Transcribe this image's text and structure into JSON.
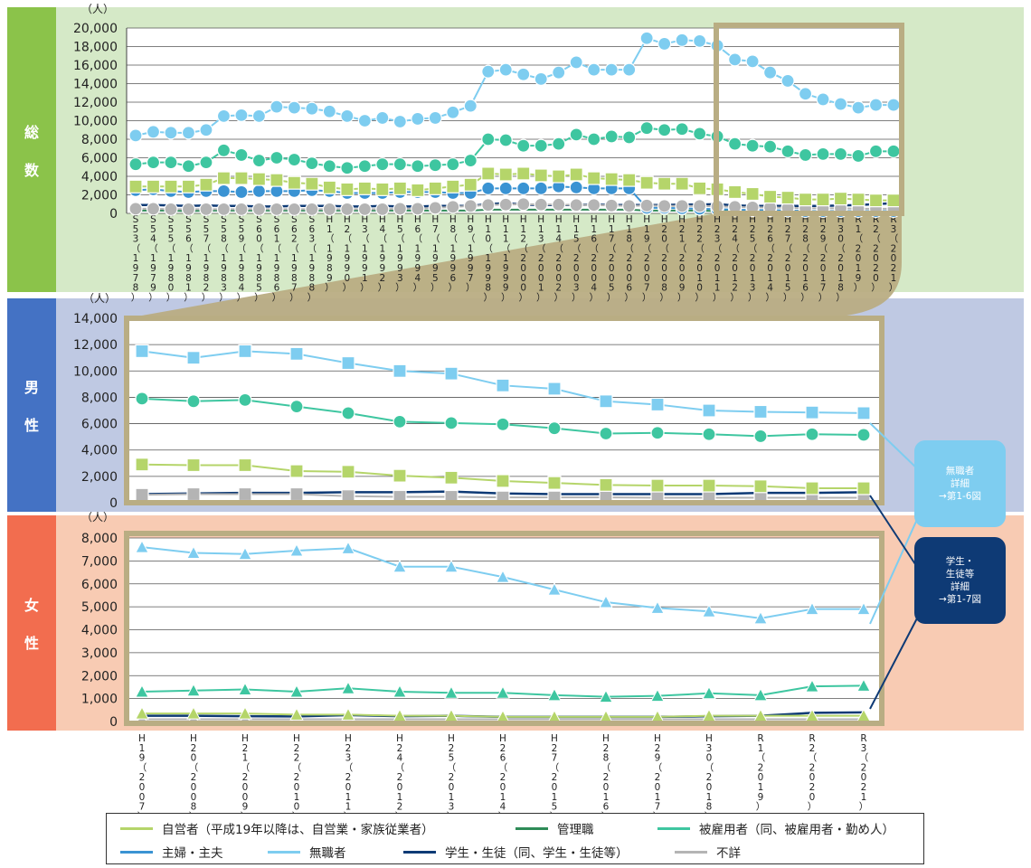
{
  "panels": {
    "total": {
      "label_chars": [
        "総",
        "数"
      ],
      "unit": "（人）"
    },
    "male": {
      "label_chars": [
        "男",
        "性"
      ],
      "unit": "（人）"
    },
    "female": {
      "label_chars": [
        "女",
        "性"
      ],
      "unit": "（人）"
    }
  },
  "colors": {
    "self_employed": "#b5d56a",
    "manager": "#2e8b57",
    "employed": "#3ec6a0",
    "homemaker": "#3a93d3",
    "unemployed": "#7ecdf0",
    "student": "#0e3a75",
    "unknown": "#b4b4b4",
    "band_total": "#d5e9c7",
    "band_male": "#bfc9e3",
    "band_female": "#f8cbb3",
    "tab_total": "#8bc34a",
    "tab_male": "#4472c4",
    "tab_female": "#f26d4f",
    "zoom_frame": "#b9ad83"
  },
  "callouts": {
    "unemployed": "無職者\n詳細\n→第1-6図",
    "student": "学生・\n生徒等\n詳細\n→第1-7図"
  },
  "legend": {
    "self_employed": "自営者（平成19年以降は、自営業・家族従業者）",
    "manager": "管理職",
    "employed": "被雇用者（同、被雇用者・勤め人）",
    "homemaker": "主婦・主夫",
    "unemployed": "無職者",
    "student": "学生・生徒（同、学生・生徒等）",
    "unknown": "不詳"
  },
  "chart_data": [
    {
      "type": "line",
      "panel": "総数",
      "ylabel": "（人）",
      "ylim": [
        0,
        20000
      ],
      "yticks": [
        "0",
        "2,000",
        "4,000",
        "6,000",
        "8,000",
        "10,000",
        "12,000",
        "14,000",
        "16,000",
        "18,000",
        "20,000"
      ],
      "categories": [
        "S53（1978）",
        "S54（1979）",
        "S55（1980）",
        "S56（1981）",
        "S57（1982）",
        "S58（1983）",
        "S59（1984）",
        "S60（1985）",
        "S61（1986）",
        "S62（1987）",
        "S63（1988）",
        "H1（1989）",
        "H2（1990）",
        "H3（1991）",
        "H4（1992）",
        "H5（1993）",
        "H6（1994）",
        "H7（1995）",
        "H8（1996）",
        "H9（1997）",
        "H10（1998）",
        "H11（1999）",
        "H12（2000）",
        "H13（2001）",
        "H14（2002）",
        "H15（2003）",
        "H16（2004）",
        "H17（2005）",
        "H18（2006）",
        "H19（2007）",
        "H20（2008）",
        "H21（2009）",
        "H22（2010）",
        "H23（2011）",
        "H24（2012）",
        "H25（2013）",
        "H26（2014）",
        "H27（2015）",
        "H28（2016）",
        "H29（2017）",
        "H30（2018）",
        "R1（2019）",
        "R2（2020）",
        "R3（2021）"
      ],
      "series": [
        {
          "name": "自営者",
          "key": "self_employed",
          "values": [
            2900,
            2900,
            2900,
            2900,
            3100,
            3800,
            3800,
            3700,
            3600,
            3300,
            3200,
            2800,
            2600,
            2700,
            2600,
            2700,
            2500,
            2700,
            2900,
            3100,
            4300,
            4200,
            4300,
            4100,
            4000,
            4200,
            3800,
            3700,
            3600,
            3300,
            3200,
            3200,
            2700,
            2600,
            2300,
            2100,
            1800,
            1700,
            1500,
            1500,
            1600,
            1500,
            1400,
            1400
          ]
        },
        {
          "name": "管理職",
          "key": "manager",
          "values": [
            300,
            300,
            300,
            250,
            300,
            300,
            300,
            300,
            300,
            300,
            300,
            300,
            300,
            300,
            300,
            300,
            300,
            300,
            300,
            300,
            400,
            400,
            400,
            400,
            400,
            400,
            400,
            400,
            400,
            300,
            300,
            300,
            300,
            250,
            250,
            250,
            200,
            200,
            200,
            200,
            200,
            200,
            150,
            150
          ]
        },
        {
          "name": "被雇用者",
          "key": "employed",
          "values": [
            5300,
            5500,
            5500,
            5100,
            5500,
            6800,
            6300,
            5700,
            6000,
            5800,
            5400,
            5100,
            4900,
            5100,
            5300,
            5300,
            5100,
            5200,
            5300,
            5700,
            8000,
            7900,
            7300,
            7300,
            7500,
            8500,
            8000,
            8300,
            8200,
            9200,
            9000,
            9100,
            8600,
            8300,
            7500,
            7300,
            7200,
            6700,
            6300,
            6400,
            6400,
            6200,
            6700,
            6700
          ]
        },
        {
          "name": "主婦・主夫",
          "key": "homemaker",
          "values": [
            2500,
            2600,
            2400,
            2300,
            2400,
            2400,
            2300,
            2400,
            2400,
            2400,
            2500,
            2400,
            2200,
            2200,
            2200,
            2300,
            2300,
            2300,
            2200,
            2200,
            2700,
            2700,
            2700,
            2700,
            2900,
            2800,
            2700,
            2700,
            2700,
            600,
            600,
            550,
            500,
            450,
            400,
            350,
            350,
            300,
            250,
            250,
            250,
            250,
            250,
            250
          ]
        },
        {
          "name": "無職者",
          "key": "unemployed",
          "values": [
            8400,
            8800,
            8700,
            8700,
            9000,
            10500,
            10600,
            10500,
            11500,
            11400,
            11300,
            11000,
            10500,
            10000,
            10300,
            9900,
            10200,
            10300,
            10900,
            11600,
            15300,
            15500,
            15000,
            14500,
            15200,
            16300,
            15500,
            15500,
            15500,
            18900,
            18300,
            18700,
            18600,
            18100,
            16600,
            16400,
            15200,
            14300,
            12900,
            12300,
            11800,
            11400,
            11700,
            11700
          ]
        },
        {
          "name": "学生・生徒",
          "key": "student",
          "values": [
            900,
            900,
            850,
            800,
            850,
            800,
            800,
            750,
            750,
            800,
            800,
            800,
            750,
            750,
            800,
            750,
            750,
            800,
            800,
            800,
            1000,
            1100,
            950,
            900,
            900,
            900,
            950,
            900,
            900,
            900,
            900,
            950,
            950,
            1000,
            850,
            800,
            800,
            800,
            800,
            800,
            850,
            900,
            1000,
            1100
          ]
        },
        {
          "name": "不詳",
          "key": "unknown",
          "values": [
            500,
            500,
            450,
            450,
            450,
            450,
            450,
            450,
            450,
            450,
            450,
            450,
            450,
            450,
            450,
            500,
            500,
            600,
            700,
            800,
            900,
            950,
            1000,
            950,
            950,
            900,
            900,
            850,
            800,
            850,
            800,
            800,
            800,
            750,
            700,
            650,
            650,
            600,
            550,
            550,
            550,
            500,
            500,
            500
          ]
        }
      ]
    },
    {
      "type": "line",
      "panel": "男性",
      "ylabel": "（人）",
      "ylim": [
        0,
        14000
      ],
      "yticks": [
        "0",
        "2,000",
        "4,000",
        "6,000",
        "8,000",
        "10,000",
        "12,000",
        "14,000"
      ],
      "categories": [
        "H19（2007）",
        "H20（2008）",
        "H21（2009）",
        "H22（2010）",
        "H23（2011）",
        "H24（2012）",
        "H25（2013）",
        "H26（2014）",
        "H27（2015）",
        "H28（2016）",
        "H29（2017）",
        "H30（2018）",
        "R1（2019）",
        "R2（2020）",
        "R3（2021）"
      ],
      "series": [
        {
          "name": "自営者",
          "key": "self_employed",
          "values": [
            2900,
            2850,
            2850,
            2400,
            2350,
            2050,
            1900,
            1650,
            1500,
            1350,
            1300,
            1300,
            1250,
            1100,
            1100
          ]
        },
        {
          "name": "被雇用者",
          "key": "employed",
          "values": [
            7900,
            7700,
            7800,
            7300,
            6800,
            6150,
            6050,
            5950,
            5650,
            5250,
            5300,
            5200,
            5050,
            5200,
            5150
          ]
        },
        {
          "name": "無職者",
          "key": "unemployed",
          "values": [
            11500,
            11000,
            11500,
            11300,
            10600,
            10000,
            9800,
            8900,
            8650,
            7700,
            7450,
            7000,
            6900,
            6850,
            6800
          ]
        },
        {
          "name": "学生・生徒",
          "key": "student",
          "values": [
            650,
            700,
            750,
            750,
            800,
            800,
            850,
            700,
            650,
            650,
            650,
            650,
            750,
            750,
            800
          ]
        },
        {
          "name": "不詳",
          "key": "unknown",
          "values": [
            600,
            650,
            650,
            650,
            500,
            450,
            450,
            400,
            400,
            400,
            380,
            380,
            380,
            380,
            380
          ]
        }
      ]
    },
    {
      "type": "line",
      "panel": "女性",
      "ylabel": "（人）",
      "ylim": [
        0,
        8000
      ],
      "yticks": [
        "0",
        "1,000",
        "2,000",
        "3,000",
        "4,000",
        "5,000",
        "6,000",
        "7,000",
        "8,000"
      ],
      "categories": [
        "H19（2007）",
        "H20（2008）",
        "H21（2009）",
        "H22（2010）",
        "H23（2011）",
        "H24（2012）",
        "H25（2013）",
        "H26（2014）",
        "H27（2015）",
        "H28（2016）",
        "H29（2017）",
        "H30（2018）",
        "R1（2019）",
        "R2（2020）",
        "R3（2021）"
      ],
      "series": [
        {
          "name": "自営者",
          "key": "self_employed",
          "values": [
            350,
            350,
            350,
            300,
            300,
            250,
            250,
            200,
            200,
            200,
            200,
            250,
            250,
            250,
            250
          ]
        },
        {
          "name": "被雇用者",
          "key": "employed",
          "values": [
            1300,
            1350,
            1400,
            1300,
            1450,
            1300,
            1250,
            1250,
            1150,
            1080,
            1120,
            1230,
            1150,
            1530,
            1560
          ]
        },
        {
          "name": "無職者",
          "key": "unemployed",
          "values": [
            7600,
            7350,
            7300,
            7450,
            7550,
            6750,
            6750,
            6300,
            5750,
            5200,
            4950,
            4800,
            4500,
            4900,
            4900
          ]
        },
        {
          "name": "学生・生徒",
          "key": "student",
          "values": [
            250,
            250,
            230,
            220,
            280,
            230,
            250,
            200,
            200,
            200,
            200,
            230,
            250,
            380,
            400
          ]
        },
        {
          "name": "不詳",
          "key": "unknown",
          "values": [
            100,
            100,
            100,
            100,
            100,
            100,
            100,
            100,
            100,
            100,
            100,
            100,
            100,
            100,
            100
          ]
        }
      ]
    }
  ]
}
